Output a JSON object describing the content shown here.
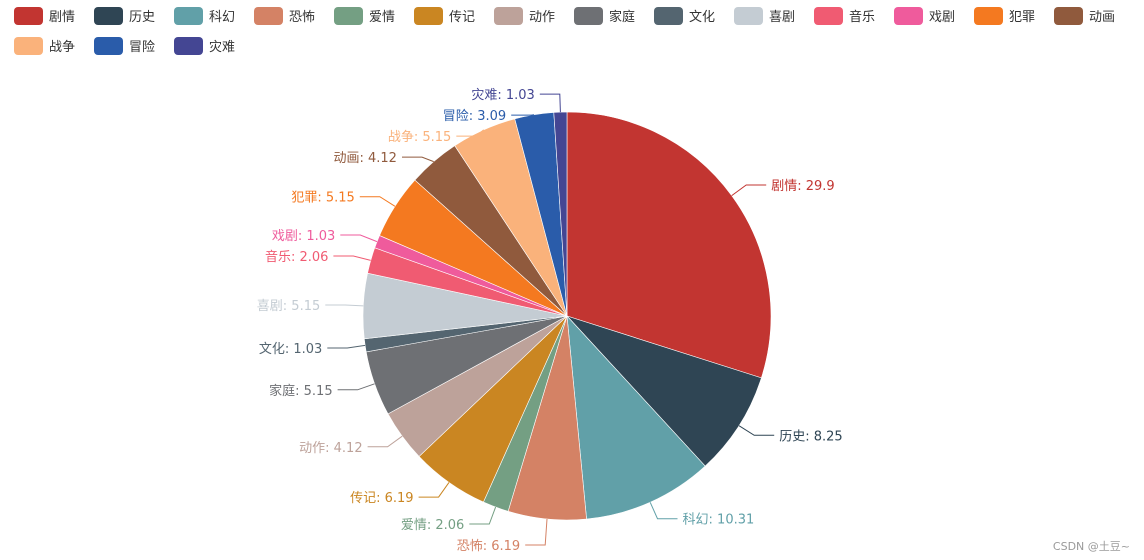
{
  "watermark": "CSDN @土豆~",
  "chart_data": {
    "type": "pie",
    "title": "",
    "label_separator": ": ",
    "slices": [
      {
        "name": "剧情",
        "value": 29.9,
        "color": "#c23531"
      },
      {
        "name": "历史",
        "value": 8.25,
        "color": "#2f4554"
      },
      {
        "name": "科幻",
        "value": 10.31,
        "color": "#61a0a8"
      },
      {
        "name": "恐怖",
        "value": 6.19,
        "color": "#d48265"
      },
      {
        "name": "爱情",
        "value": 2.06,
        "color": "#749f83"
      },
      {
        "name": "传记",
        "value": 6.19,
        "color": "#ca8622"
      },
      {
        "name": "动作",
        "value": 4.12,
        "color": "#bda29a"
      },
      {
        "name": "家庭",
        "value": 5.15,
        "color": "#6e7074"
      },
      {
        "name": "文化",
        "value": 1.03,
        "color": "#546570"
      },
      {
        "name": "喜剧",
        "value": 5.15,
        "color": "#c4ccd3"
      },
      {
        "name": "音乐",
        "value": 2.06,
        "color": "#f05b72"
      },
      {
        "name": "戏剧",
        "value": 1.03,
        "color": "#ef5b9c"
      },
      {
        "name": "犯罪",
        "value": 5.15,
        "color": "#f47920"
      },
      {
        "name": "动画",
        "value": 4.12,
        "color": "#905a3d"
      },
      {
        "name": "战争",
        "value": 5.15,
        "color": "#fab27b"
      },
      {
        "name": "冒险",
        "value": 3.09,
        "color": "#2a5caa"
      },
      {
        "name": "灾难",
        "value": 1.03,
        "color": "#444693"
      }
    ],
    "legend_position": "top-left"
  }
}
